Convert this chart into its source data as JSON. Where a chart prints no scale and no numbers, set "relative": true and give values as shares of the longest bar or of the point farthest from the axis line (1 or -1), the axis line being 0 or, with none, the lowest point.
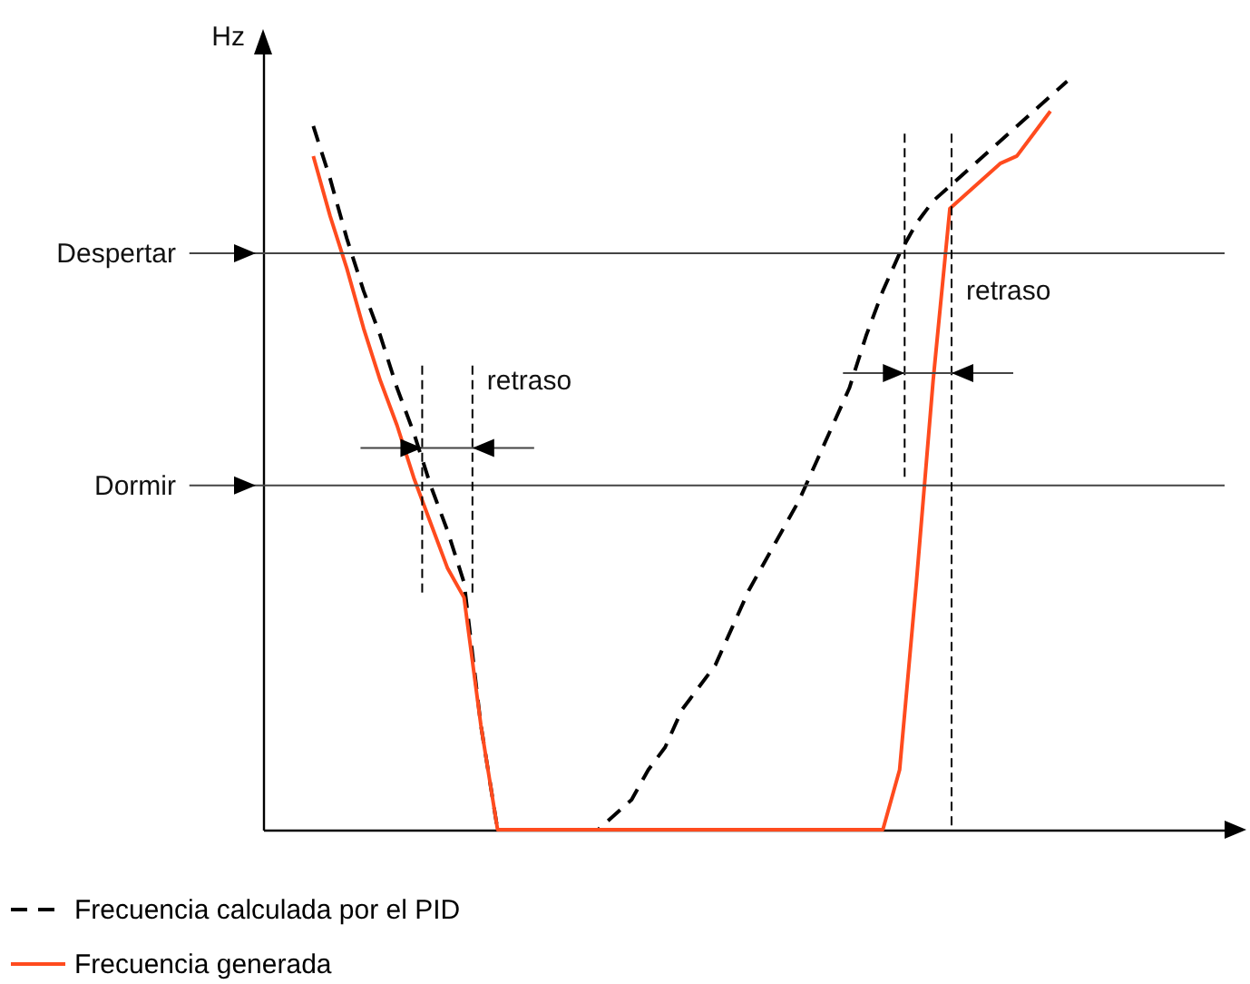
{
  "chart_data": {
    "type": "line",
    "relative": true,
    "ylabel": "Hz",
    "categories": [
      null,
      null,
      null,
      null,
      null,
      null,
      null,
      null,
      null,
      null,
      null,
      null,
      null,
      null,
      null,
      null,
      null,
      null,
      null,
      null,
      null,
      null,
      null,
      null,
      null,
      null,
      null,
      null,
      null,
      null,
      null,
      null,
      null,
      null,
      null,
      null,
      null,
      null,
      null,
      null,
      null,
      null,
      null,
      null,
      null,
      null
    ],
    "series": [
      {
        "name": "Frecuencia calculada por el PID",
        "color": "#000000",
        "line_style": "dashed",
        "values": [
          0.94,
          0.87,
          0.79,
          0.72,
          0.66,
          0.59,
          0.53,
          0.46,
          0.4,
          0.33,
          0.14,
          0,
          0,
          0,
          0,
          0,
          0,
          0,
          0.02,
          0.04,
          0.08,
          0.11,
          0.16,
          0.19,
          0.22,
          0.27,
          0.32,
          0.36,
          0.4,
          0.44,
          0.49,
          0.54,
          0.59,
          0.66,
          0.72,
          0.77,
          0.81,
          0.84,
          0.86,
          0.88,
          0.9,
          0.92,
          0.94,
          0.96,
          0.98,
          1
        ]
      },
      {
        "name": "Frecuencia generada",
        "color": "#ff4b1e",
        "line_style": "solid",
        "values": [
          0.9,
          0.82,
          0.75,
          0.67,
          0.6,
          0.54,
          0.47,
          0.41,
          0.35,
          0.31,
          0.14,
          0,
          0,
          0,
          0,
          0,
          0,
          0,
          0,
          0,
          0,
          0,
          0,
          0,
          0,
          0,
          0,
          0,
          0,
          0,
          0,
          0,
          0,
          0,
          0,
          0.08,
          0.33,
          0.6,
          0.83,
          0.85,
          0.87,
          0.89,
          0.9,
          0.93,
          0.96,
          null
        ]
      }
    ],
    "ref_lines": [
      {
        "axis": "y",
        "value": 0.77,
        "label": "Despertar"
      },
      {
        "axis": "y",
        "value": 0.46,
        "label": "Dormir"
      }
    ],
    "annotations": [
      "retraso",
      "retraso"
    ],
    "legend": "bottom left"
  }
}
